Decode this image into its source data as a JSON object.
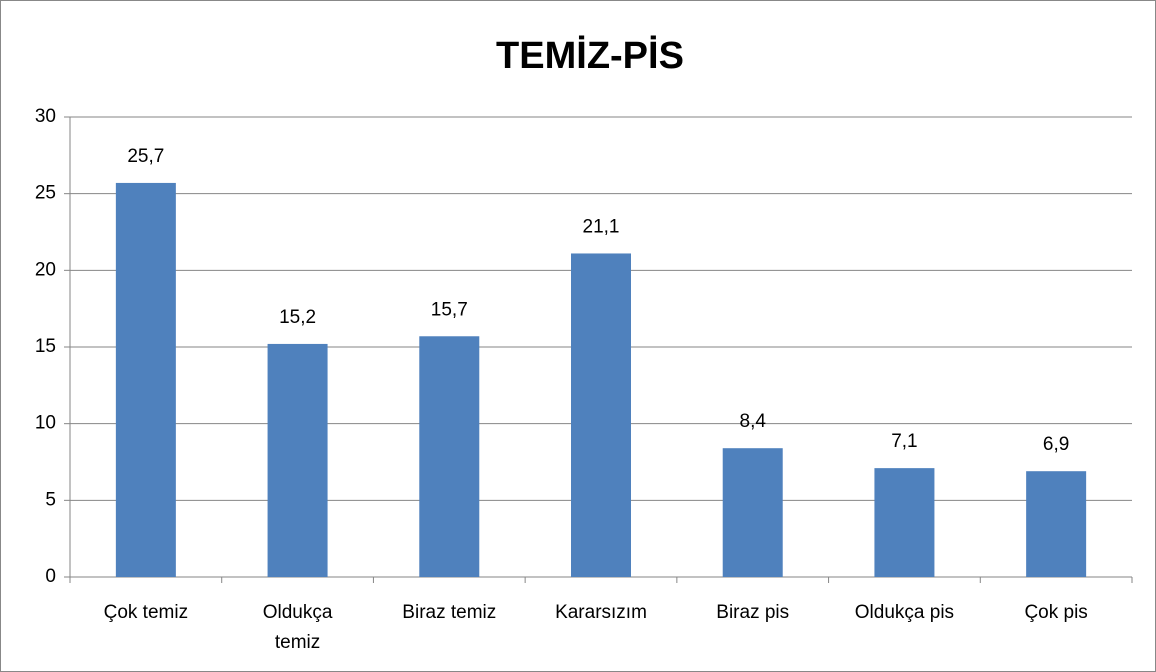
{
  "chart_data": {
    "type": "bar",
    "title": "TEMİZ-PİS",
    "categories": [
      "Çok temiz",
      "Oldukça temiz",
      "Biraz temiz",
      "Kararsızım",
      "Biraz pis",
      "Oldukça pis",
      "Çok pis"
    ],
    "values": [
      25.7,
      15.2,
      15.7,
      21.1,
      8.4,
      7.1,
      6.9
    ],
    "value_labels": [
      "25,7",
      "15,2",
      "15,7",
      "21,1",
      "8,4",
      "7,1",
      "6,9"
    ],
    "color": "#4f81bd",
    "ylim": [
      0,
      30
    ],
    "yticks": [
      0,
      5,
      10,
      15,
      20,
      25,
      30
    ],
    "grid": true
  }
}
